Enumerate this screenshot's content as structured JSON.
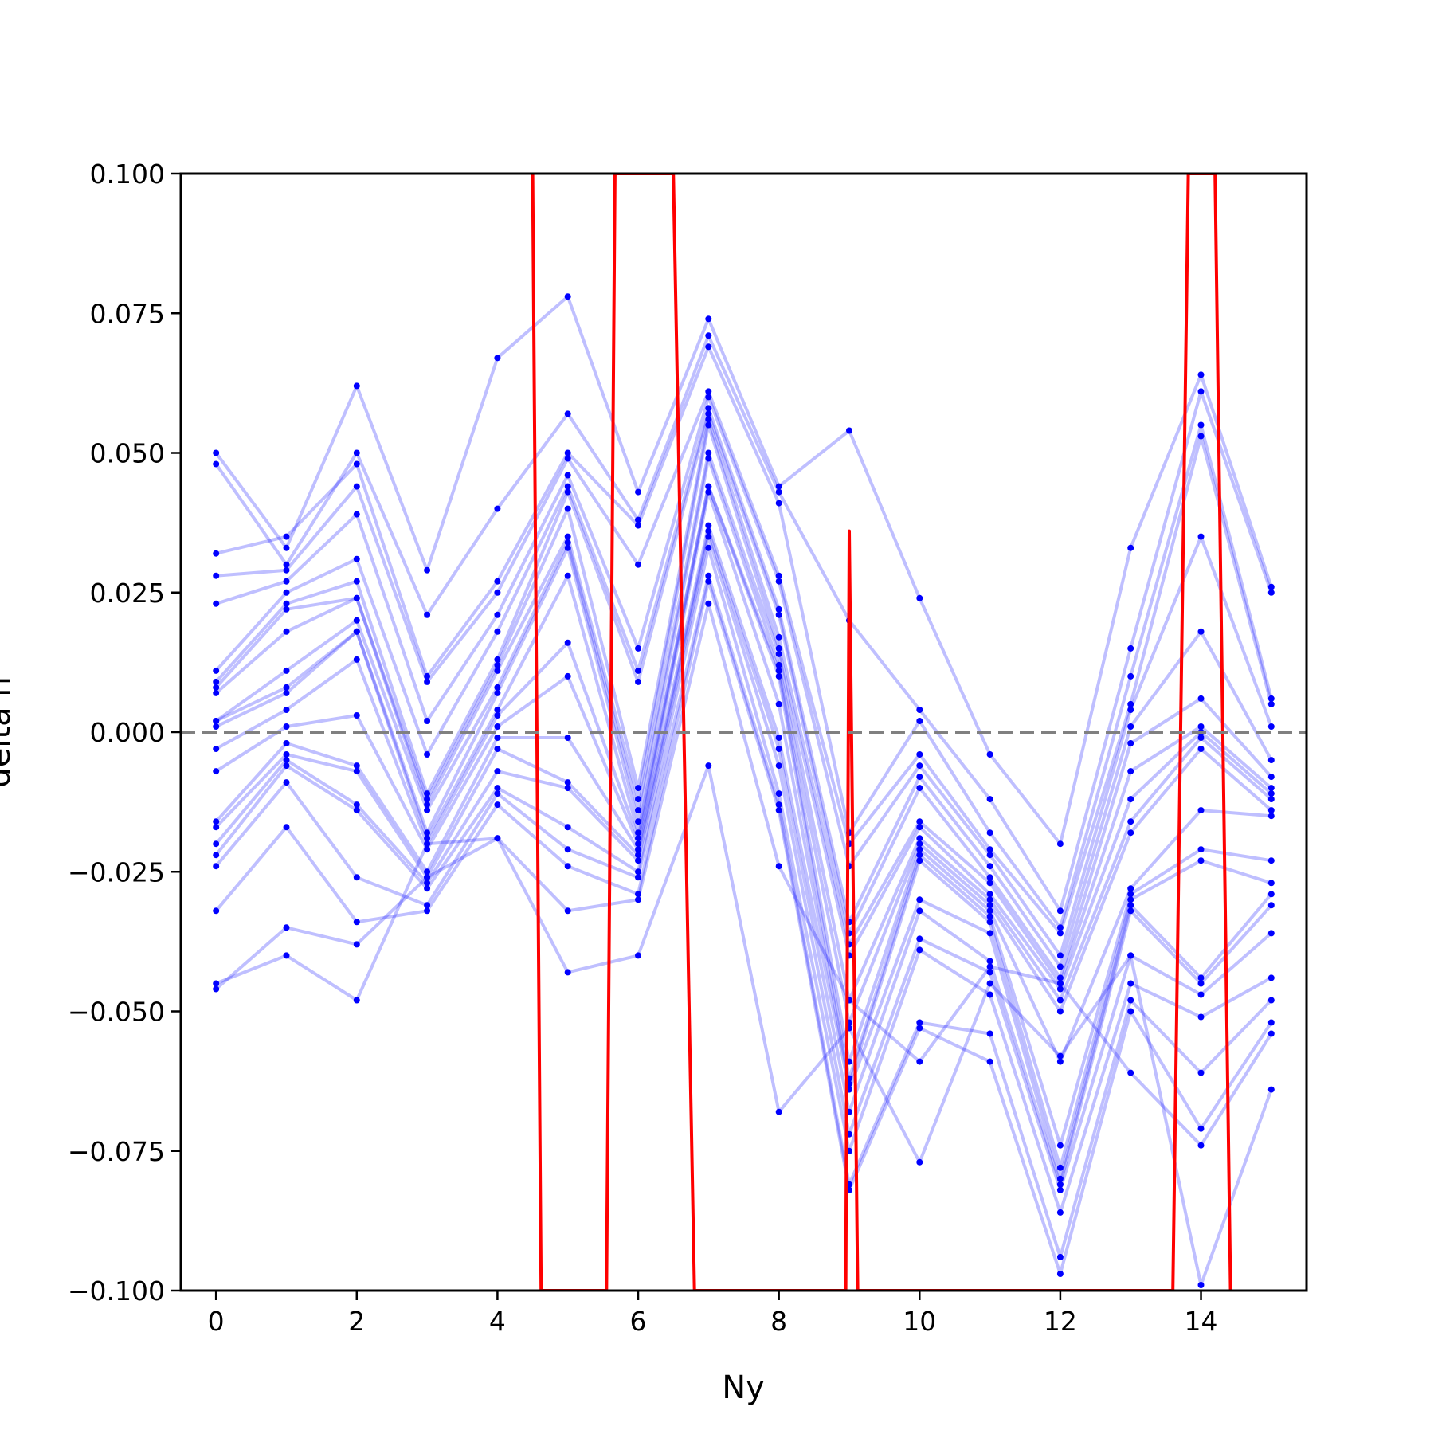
{
  "chart_data": {
    "type": "line",
    "title": "",
    "xlabel": "Ny",
    "ylabel": "delta n",
    "xlim": [
      -0.5,
      15.5
    ],
    "ylim": [
      -0.1,
      0.1
    ],
    "x_ticks": [
      0,
      2,
      4,
      6,
      8,
      10,
      12,
      14
    ],
    "x_tick_labels": [
      "0",
      "2",
      "4",
      "6",
      "8",
      "10",
      "12",
      "14"
    ],
    "y_ticks": [
      0.1,
      0.075,
      0.05,
      0.025,
      0.0,
      -0.025,
      -0.05,
      -0.075,
      -0.1
    ],
    "y_tick_labels": [
      "0.100",
      "0.075",
      "0.050",
      "0.025",
      "0.000",
      "−0.025",
      "−0.050",
      "−0.075",
      "−0.100"
    ],
    "grid": false,
    "reference_line": {
      "y": 0.0,
      "style": "dashed",
      "color": "#808080"
    },
    "colors": {
      "realizations": "#0000ff",
      "mean": "#ff0000",
      "reference": "#808080"
    },
    "x": [
      0,
      1,
      2,
      3,
      4,
      5,
      6,
      7,
      8,
      9,
      10,
      11,
      12,
      13,
      14,
      15
    ],
    "series": [
      {
        "values": [
          0.05,
          0.033,
          0.062,
          0.029,
          0.067,
          0.078,
          0.043,
          0.074,
          0.044,
          0.054,
          0.024,
          -0.004,
          -0.02,
          0.033,
          0.064,
          0.026
        ]
      },
      {
        "values": [
          0.048,
          0.03,
          0.05,
          0.021,
          0.04,
          0.057,
          0.038,
          0.071,
          0.043,
          0.02,
          0.004,
          -0.012,
          -0.032,
          0.015,
          0.061,
          0.025
        ]
      },
      {
        "values": [
          0.032,
          0.035,
          0.048,
          0.01,
          0.027,
          0.05,
          0.037,
          0.069,
          0.041,
          -0.018,
          0.002,
          -0.018,
          -0.035,
          0.01,
          0.055,
          0.006
        ]
      },
      {
        "values": [
          0.028,
          0.029,
          0.044,
          0.009,
          0.025,
          0.049,
          0.03,
          0.061,
          0.028,
          -0.02,
          -0.004,
          -0.021,
          -0.036,
          0.005,
          0.053,
          0.005
        ]
      },
      {
        "values": [
          0.023,
          0.027,
          0.039,
          0.002,
          0.021,
          0.046,
          0.015,
          0.06,
          0.027,
          -0.024,
          -0.006,
          -0.022,
          -0.04,
          0.004,
          0.035,
          0.001
        ]
      },
      {
        "values": [
          0.011,
          0.025,
          0.031,
          -0.004,
          0.018,
          0.044,
          0.011,
          0.058,
          0.022,
          -0.034,
          -0.008,
          -0.024,
          -0.042,
          0.001,
          0.018,
          -0.005
        ]
      },
      {
        "values": [
          0.009,
          0.023,
          0.027,
          -0.011,
          0.013,
          0.043,
          0.009,
          0.057,
          0.021,
          -0.036,
          -0.01,
          -0.026,
          -0.044,
          -0.002,
          0.006,
          -0.008
        ]
      },
      {
        "values": [
          0.008,
          0.022,
          0.024,
          -0.012,
          0.012,
          0.04,
          -0.01,
          0.056,
          0.017,
          -0.038,
          -0.016,
          -0.027,
          -0.045,
          -0.007,
          0.001,
          -0.01
        ]
      },
      {
        "values": [
          0.007,
          0.018,
          0.024,
          -0.013,
          0.011,
          0.035,
          -0.012,
          0.055,
          0.015,
          -0.04,
          -0.017,
          -0.029,
          -0.046,
          -0.012,
          0.0,
          -0.011
        ]
      },
      {
        "values": [
          0.002,
          0.011,
          0.02,
          -0.014,
          0.008,
          0.034,
          -0.014,
          0.05,
          0.014,
          -0.048,
          -0.019,
          -0.03,
          -0.048,
          -0.016,
          -0.001,
          -0.012
        ]
      },
      {
        "values": [
          0.002,
          0.008,
          0.018,
          -0.018,
          0.007,
          0.033,
          -0.016,
          0.049,
          0.012,
          -0.052,
          -0.02,
          -0.031,
          -0.05,
          -0.018,
          -0.003,
          -0.014
        ]
      },
      {
        "values": [
          0.001,
          0.007,
          0.018,
          -0.019,
          0.004,
          0.028,
          -0.018,
          0.044,
          0.011,
          -0.059,
          -0.021,
          -0.032,
          -0.059,
          -0.028,
          -0.014,
          -0.015
        ]
      },
      {
        "values": [
          -0.003,
          0.004,
          0.013,
          -0.02,
          0.003,
          0.016,
          -0.019,
          0.044,
          0.01,
          -0.062,
          -0.022,
          -0.033,
          -0.074,
          -0.029,
          -0.021,
          -0.023
        ]
      },
      {
        "values": [
          -0.007,
          0.001,
          0.003,
          -0.021,
          0.001,
          0.01,
          -0.02,
          0.043,
          0.005,
          -0.063,
          -0.023,
          -0.034,
          -0.078,
          -0.03,
          -0.023,
          -0.027
        ]
      },
      {
        "values": [
          -0.016,
          -0.002,
          -0.006,
          -0.025,
          -0.001,
          -0.001,
          -0.021,
          0.037,
          -0.001,
          -0.064,
          -0.03,
          -0.036,
          -0.08,
          -0.031,
          -0.044,
          -0.029
        ]
      },
      {
        "values": [
          -0.017,
          -0.004,
          -0.007,
          -0.026,
          -0.003,
          -0.009,
          -0.022,
          0.036,
          -0.003,
          -0.068,
          -0.032,
          -0.041,
          -0.081,
          -0.032,
          -0.045,
          -0.031
        ]
      },
      {
        "values": [
          -0.02,
          -0.005,
          -0.013,
          -0.027,
          -0.007,
          -0.01,
          -0.023,
          0.035,
          -0.006,
          -0.072,
          -0.037,
          -0.043,
          -0.082,
          -0.04,
          -0.047,
          -0.036
        ]
      },
      {
        "values": [
          -0.022,
          -0.006,
          -0.014,
          -0.028,
          -0.01,
          -0.017,
          -0.025,
          0.033,
          -0.011,
          -0.075,
          -0.039,
          -0.047,
          -0.086,
          -0.045,
          -0.051,
          -0.044
        ]
      },
      {
        "values": [
          -0.024,
          -0.009,
          -0.026,
          -0.031,
          -0.011,
          -0.021,
          -0.026,
          0.028,
          -0.013,
          -0.081,
          -0.052,
          -0.054,
          -0.094,
          -0.048,
          -0.061,
          -0.048
        ]
      },
      {
        "values": [
          -0.032,
          -0.017,
          -0.034,
          -0.032,
          -0.013,
          -0.024,
          -0.029,
          0.027,
          -0.014,
          -0.082,
          -0.053,
          -0.059,
          -0.097,
          -0.05,
          -0.071,
          -0.052
        ]
      },
      {
        "values": [
          -0.046,
          -0.035,
          -0.038,
          -0.026,
          -0.019,
          -0.032,
          -0.03,
          0.023,
          -0.024,
          -0.048,
          -0.059,
          -0.042,
          -0.045,
          -0.061,
          -0.074,
          -0.054
        ]
      },
      {
        "values": [
          -0.045,
          -0.04,
          -0.048,
          -0.02,
          -0.019,
          -0.043,
          -0.04,
          -0.006,
          -0.068,
          -0.053,
          -0.077,
          -0.045,
          -0.058,
          -0.04,
          -0.099,
          -0.064
        ]
      }
    ],
    "mean": {
      "color": "#ff0000",
      "x": [
        4.5,
        4.62,
        5.55,
        5.67,
        6.5,
        6.8,
        8.95,
        9.0,
        9.12,
        13.6,
        13.82,
        14.2,
        14.42
      ],
      "values": [
        0.1,
        -0.1,
        -0.1,
        0.1,
        0.1,
        -0.1,
        -0.1,
        0.036,
        -0.1,
        -0.1,
        0.1,
        0.1,
        -0.1
      ]
    }
  }
}
